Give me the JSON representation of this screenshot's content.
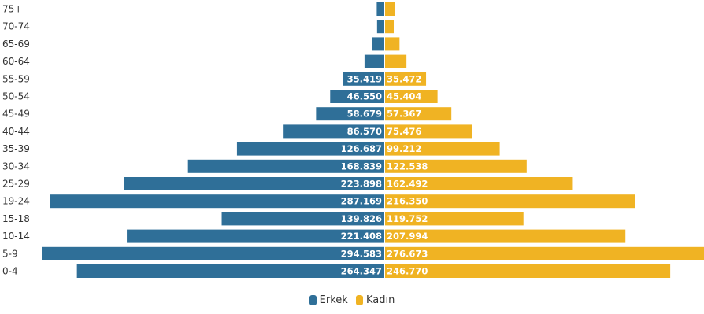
{
  "chart_data": {
    "type": "bar",
    "orientation": "horizontal-pyramid",
    "categories": [
      "75+",
      "70-74",
      "65-69",
      "60-64",
      "55-59",
      "50-54",
      "45-49",
      "40-44",
      "35-39",
      "30-34",
      "25-29",
      "19-24",
      "15-18",
      "10-14",
      "5-9",
      "0-4"
    ],
    "series": [
      {
        "name": "Erkek",
        "color": "#2f6f98",
        "values": [
          6500,
          6200,
          10500,
          17000,
          35419,
          46550,
          58679,
          86570,
          126687,
          168839,
          223898,
          287169,
          139826,
          221408,
          294583,
          264347
        ],
        "labels": [
          "",
          "",
          "",
          "",
          "35.419",
          "46.550",
          "58.679",
          "86.570",
          "126.687",
          "168.839",
          "223.898",
          "287.169",
          "139.826",
          "221.408",
          "294.583",
          "264.347"
        ]
      },
      {
        "name": "Kadın",
        "color": "#f0b323",
        "values": [
          8500,
          7500,
          12500,
          18500,
          35472,
          45404,
          57367,
          75476,
          99212,
          122538,
          162492,
          216350,
          119752,
          207994,
          276673,
          246770
        ],
        "labels": [
          "",
          "",
          "",
          "",
          "35.472",
          "45.404",
          "57.367",
          "75.476",
          "99.212",
          "122.538",
          "162.492",
          "216.350",
          "119.752",
          "207.994",
          "276.673",
          "246.770"
        ]
      }
    ],
    "legend": {
      "position": "bottom-center",
      "items": [
        "Erkek",
        "Kadın"
      ]
    },
    "grid": false
  }
}
